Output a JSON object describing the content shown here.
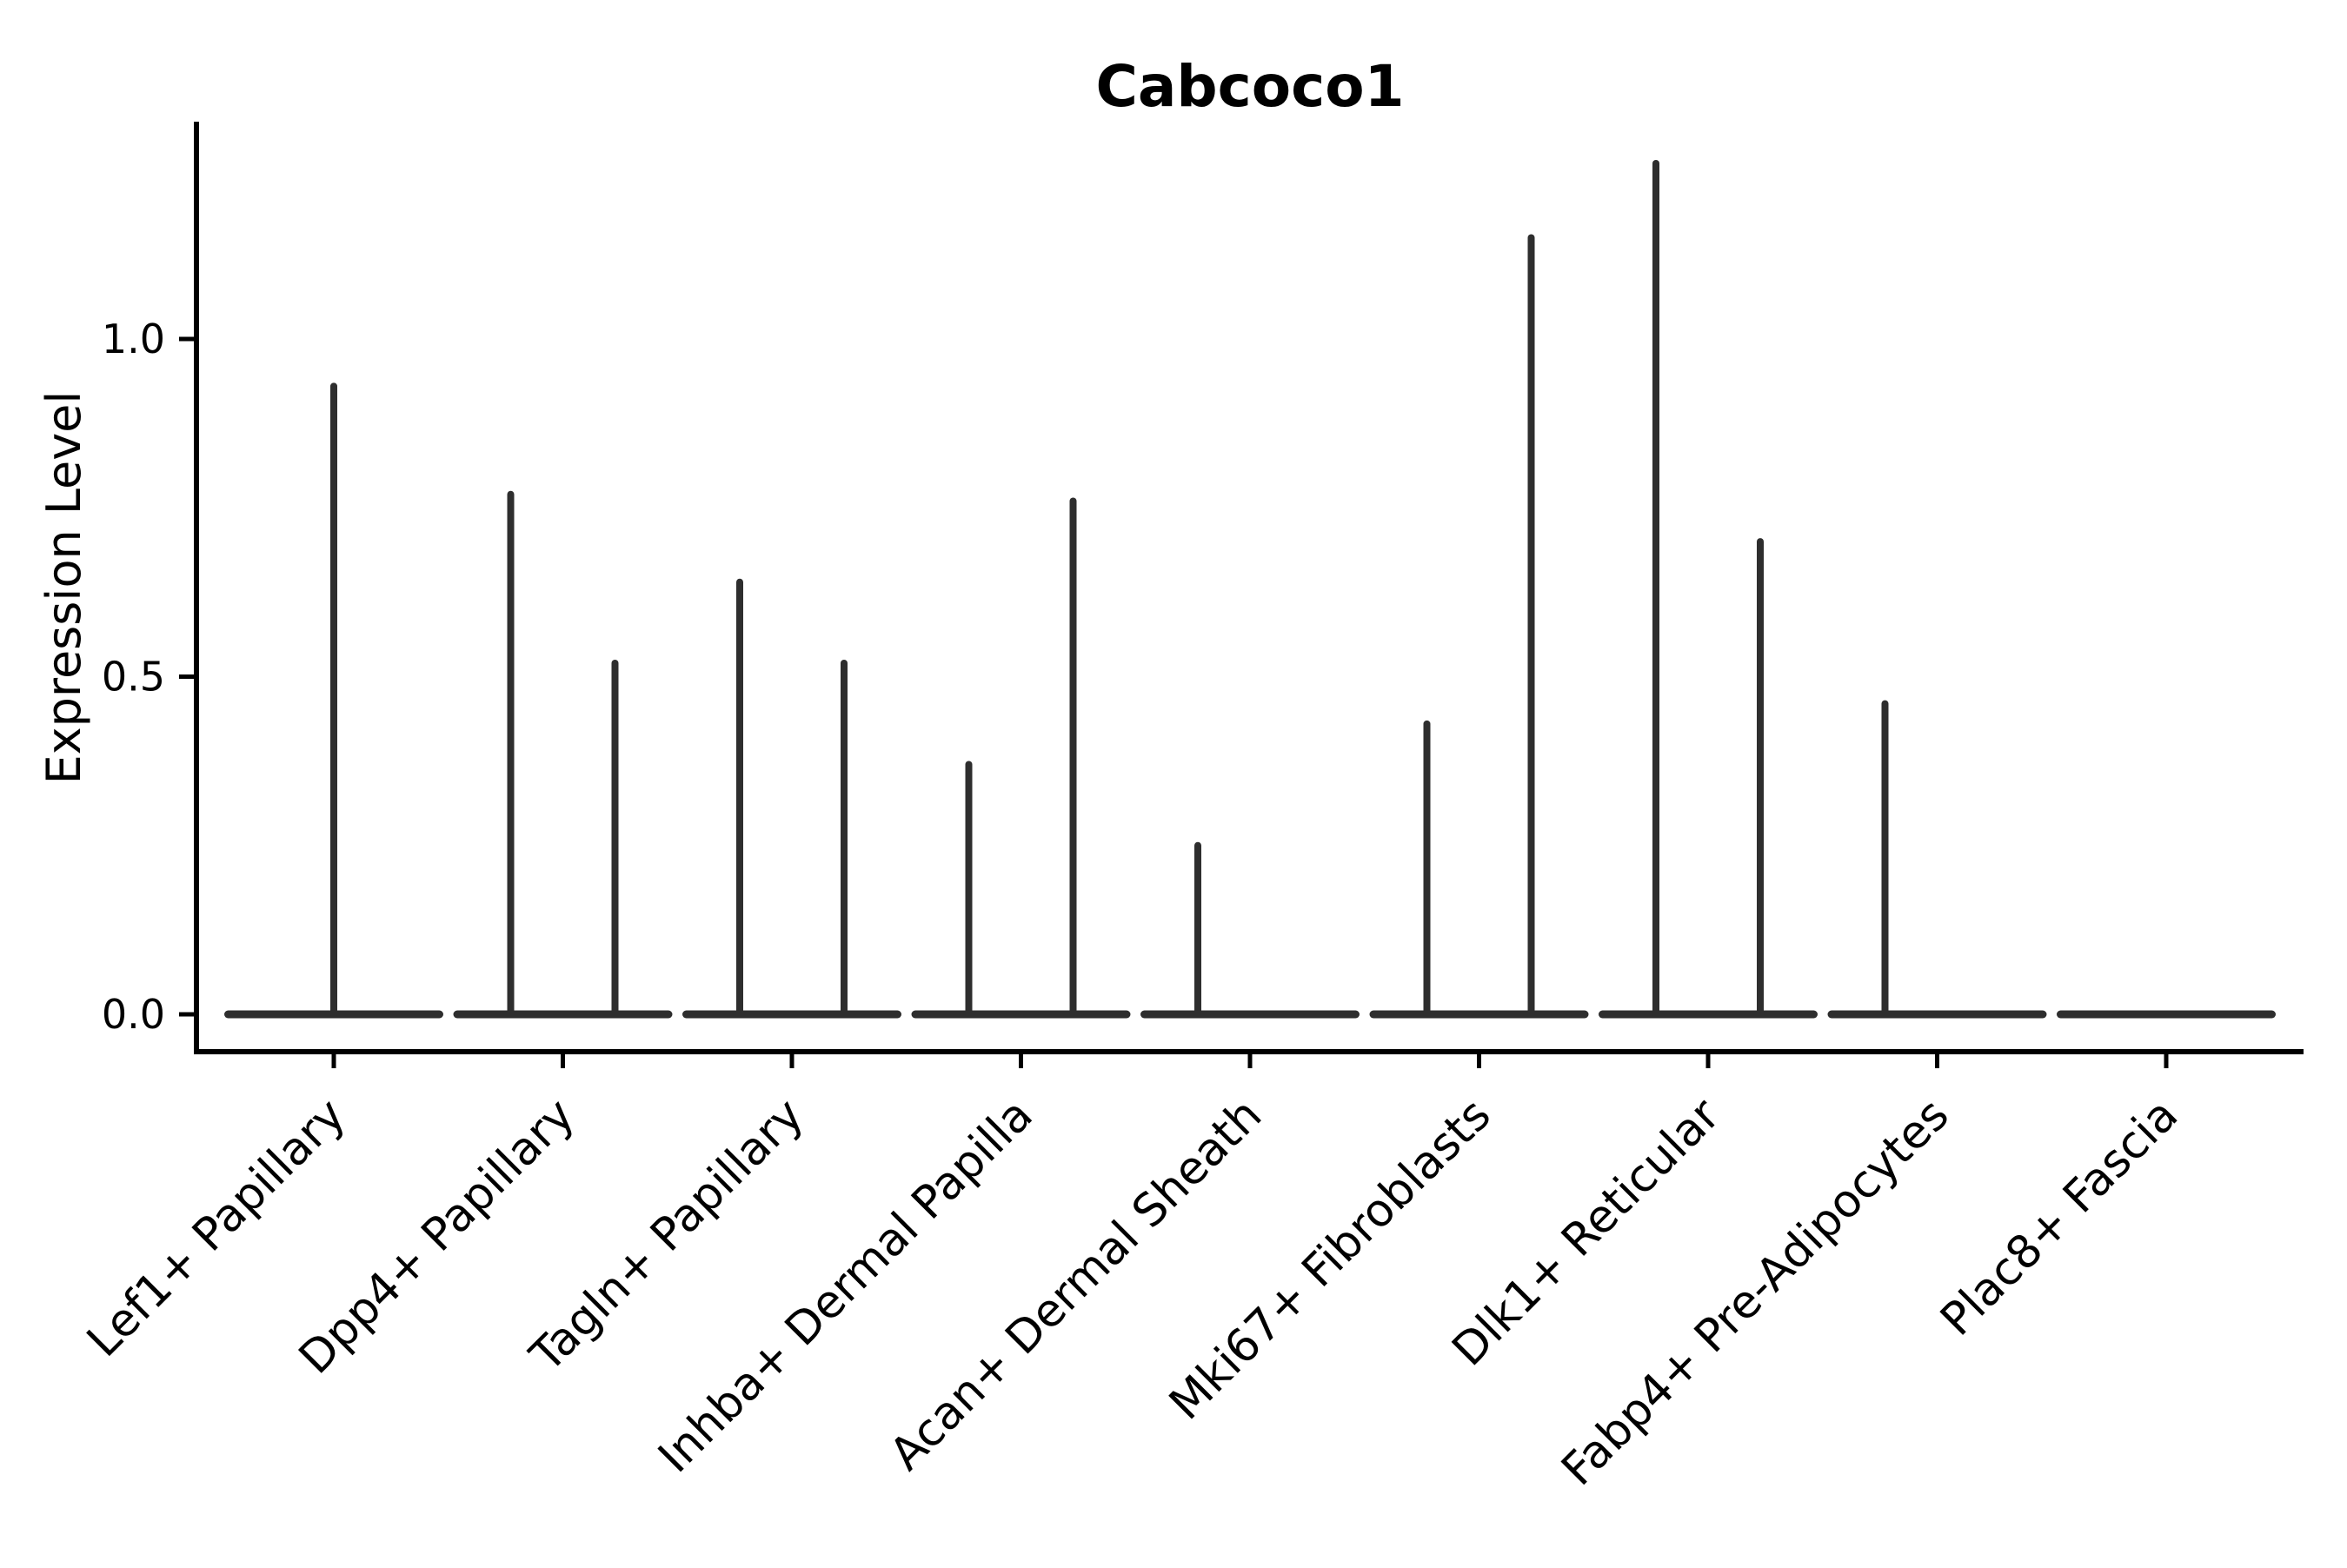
{
  "figure": {
    "title": "Cabcoco1",
    "y_axis_title": "Expression Level"
  },
  "chart_data": {
    "type": "violin",
    "title": "Cabcoco1",
    "xlabel": "",
    "ylabel": "Expression Level",
    "ytick_labels": [
      "0.0",
      "0.5",
      "1.0"
    ],
    "ytick_values": [
      0.0,
      0.5,
      1.0
    ],
    "ylim": [
      -0.055,
      1.32
    ],
    "grid": false,
    "legend": "none",
    "colors": {
      "violin": "#2e2e2e",
      "axis": "#000000",
      "text": "#000000",
      "background": "#ffffff"
    },
    "categories": [
      "Lef1+ Papillary",
      "Dpp4+ Papillary",
      "Tagln+ Papillary",
      "Inhba+ Dermal Papilla",
      "Acan+ Dermal Sheath",
      "Mki67+ Fibroblasts",
      "Dlk1+ Reticular",
      "Fabp4+ Pre-Adipocytes",
      "Plac8+ Fascia"
    ],
    "series": [
      {
        "category": "Lef1+ Papillary",
        "violins": [
          {
            "position": "center",
            "max_expression": 0.93
          }
        ]
      },
      {
        "category": "Dpp4+ Papillary",
        "violins": [
          {
            "position": "left",
            "max_expression": 0.77
          },
          {
            "position": "right",
            "max_expression": 0.52
          }
        ]
      },
      {
        "category": "Tagln+ Papillary",
        "violins": [
          {
            "position": "left",
            "max_expression": 0.64
          },
          {
            "position": "right",
            "max_expression": 0.52
          }
        ]
      },
      {
        "category": "Inhba+ Dermal Papilla",
        "violins": [
          {
            "position": "left",
            "max_expression": 0.37
          },
          {
            "position": "right",
            "max_expression": 0.76
          }
        ]
      },
      {
        "category": "Acan+ Dermal Sheath",
        "violins": [
          {
            "position": "left",
            "max_expression": 0.25
          }
        ]
      },
      {
        "category": "Mki67+ Fibroblasts",
        "violins": [
          {
            "position": "left",
            "max_expression": 0.43
          },
          {
            "position": "right",
            "max_expression": 1.15
          }
        ]
      },
      {
        "category": "Dlk1+ Reticular",
        "violins": [
          {
            "position": "left",
            "max_expression": 1.26
          },
          {
            "position": "right",
            "max_expression": 0.7
          }
        ]
      },
      {
        "category": "Fabp4+ Pre-Adipocytes",
        "violins": [
          {
            "position": "left",
            "max_expression": 0.46
          }
        ]
      },
      {
        "category": "Plac8+ Fascia",
        "violins": []
      }
    ]
  }
}
